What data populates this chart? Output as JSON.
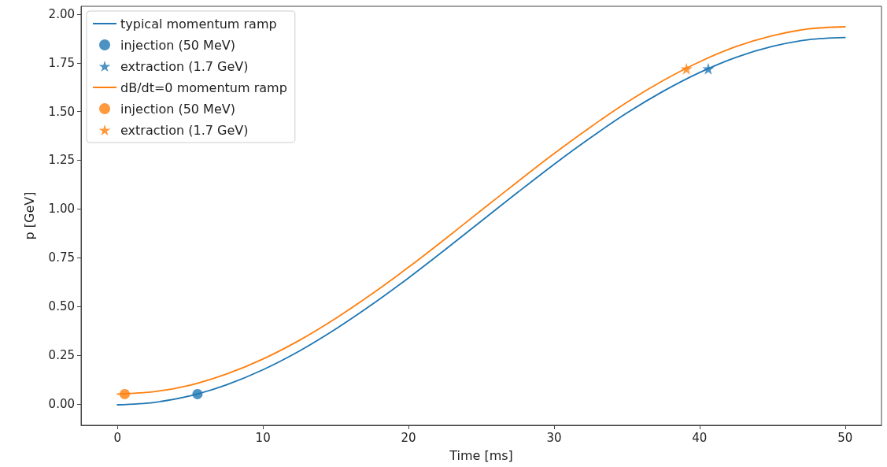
{
  "chart_data": {
    "type": "line",
    "xlabel": "Time [ms]",
    "ylabel": "p [GeV]",
    "xlim": [
      -2.5,
      52.5
    ],
    "xticks": [
      0,
      10,
      20,
      30,
      40,
      50
    ],
    "ylim": [
      -0.11,
      2.04
    ],
    "yticks": [
      {
        "value": 0,
        "label": "0.00"
      },
      {
        "value": 0.25,
        "label": "0.25"
      },
      {
        "value": 0.5,
        "label": "0.50"
      },
      {
        "value": 0.75,
        "label": "0.75"
      },
      {
        "value": 1,
        "label": "1.00"
      },
      {
        "value": 1.25,
        "label": "1.25"
      },
      {
        "value": 1.5,
        "label": "1.50"
      },
      {
        "value": 1.75,
        "label": "1.75"
      },
      {
        "value": 2,
        "label": "2.00"
      }
    ],
    "grid": false,
    "legend": "top left",
    "series": [
      {
        "name": "typical momentum ramp",
        "marker": "none",
        "color": "#1f77b4",
        "x": [
          0,
          2.5,
          5,
          7.5,
          10,
          12.5,
          15,
          17.5,
          20,
          22.5,
          25,
          27.5,
          30,
          32.5,
          35,
          37.5,
          40,
          42.5,
          45,
          47.5,
          50
        ],
        "values": [
          -0.005,
          0.007,
          0.041,
          0.098,
          0.175,
          0.271,
          0.384,
          0.51,
          0.646,
          0.79,
          0.938,
          1.085,
          1.229,
          1.365,
          1.492,
          1.604,
          1.7,
          1.778,
          1.834,
          1.869,
          1.88
        ]
      },
      {
        "name": "injection (50 MeV)",
        "type": "scatter",
        "marker": "circle",
        "color": "#1f77b4",
        "x": [
          5.5
        ],
        "values": [
          0.05
        ]
      },
      {
        "name": "extraction (1.7 GeV)",
        "type": "scatter",
        "marker": "star",
        "color": "#1f77b4",
        "x": [
          40.6
        ],
        "values": [
          1.72
        ]
      },
      {
        "name": "dB/dt=0 momentum ramp",
        "marker": "none",
        "color": "#ff7f0e",
        "x": [
          0,
          2.5,
          5,
          7.5,
          10,
          12.5,
          15,
          17.5,
          20,
          22.5,
          25,
          27.5,
          30,
          32.5,
          35,
          37.5,
          40,
          42.5,
          45,
          47.5,
          50
        ],
        "values": [
          0.05,
          0.062,
          0.096,
          0.153,
          0.23,
          0.326,
          0.439,
          0.565,
          0.701,
          0.845,
          0.993,
          1.14,
          1.284,
          1.42,
          1.547,
          1.659,
          1.755,
          1.833,
          1.889,
          1.924,
          1.935
        ]
      },
      {
        "name": "injection (50 MeV)",
        "type": "scatter",
        "marker": "circle",
        "color": "#ff7f0e",
        "x": [
          0.5
        ],
        "values": [
          0.05
        ]
      },
      {
        "name": "extraction (1.7 GeV)",
        "type": "scatter",
        "marker": "star",
        "color": "#ff7f0e",
        "x": [
          39.1
        ],
        "values": [
          1.72
        ]
      }
    ]
  }
}
